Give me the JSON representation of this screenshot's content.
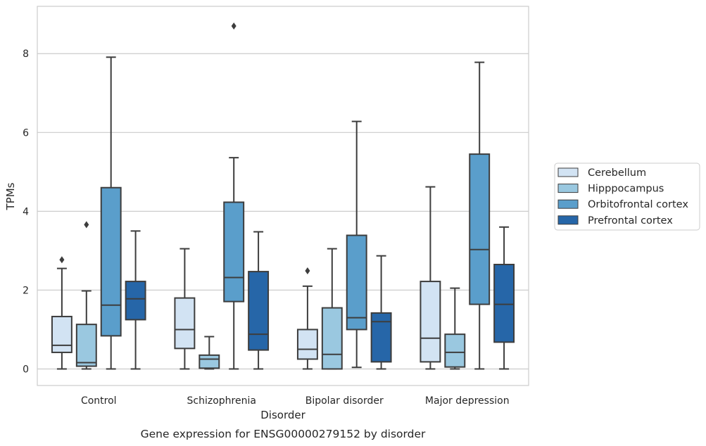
{
  "caption": "Gene expression for ENSG00000279152 by disorder",
  "chart_data": {
    "type": "box",
    "xlabel": "Disorder",
    "ylabel": "TPMs",
    "ylim": [
      -0.42,
      9.2
    ],
    "yticks": [
      0,
      2,
      4,
      6,
      8
    ],
    "categories": [
      "Control",
      "Schizophrenia",
      "Bipolar disorder",
      "Major depression"
    ],
    "grid": "horizontal",
    "legend_position": "right",
    "series": [
      {
        "name": "Cerebellum",
        "color": "#d2e3f3",
        "boxes": [
          {
            "whislo": 0.0,
            "q1": 0.42,
            "med": 0.6,
            "q3": 1.33,
            "whishi": 2.55,
            "fliers": [
              2.77
            ]
          },
          {
            "whislo": 0.0,
            "q1": 0.52,
            "med": 1.0,
            "q3": 1.8,
            "whishi": 3.05,
            "fliers": []
          },
          {
            "whislo": 0.0,
            "q1": 0.25,
            "med": 0.5,
            "q3": 1.0,
            "whishi": 2.1,
            "fliers": [
              2.49
            ]
          },
          {
            "whislo": 0.0,
            "q1": 0.18,
            "med": 0.78,
            "q3": 2.22,
            "whishi": 4.62,
            "fliers": []
          }
        ]
      },
      {
        "name": "Hipppocampus",
        "color": "#9ac8e0",
        "boxes": [
          {
            "whislo": 0.0,
            "q1": 0.07,
            "med": 0.16,
            "q3": 1.13,
            "whishi": 1.98,
            "fliers": [
              3.66
            ]
          },
          {
            "whislo": 0.0,
            "q1": 0.02,
            "med": 0.25,
            "q3": 0.35,
            "whishi": 0.82,
            "fliers": []
          },
          {
            "whislo": 0.0,
            "q1": 0.0,
            "med": 0.37,
            "q3": 1.55,
            "whishi": 3.05,
            "fliers": []
          },
          {
            "whislo": 0.0,
            "q1": 0.05,
            "med": 0.42,
            "q3": 0.88,
            "whishi": 2.05,
            "fliers": []
          }
        ]
      },
      {
        "name": "Orbitofrontal cortex",
        "color": "#5a9ecb",
        "boxes": [
          {
            "whislo": 0.0,
            "q1": 0.84,
            "med": 1.62,
            "q3": 4.6,
            "whishi": 7.91,
            "fliers": []
          },
          {
            "whislo": 0.0,
            "q1": 1.71,
            "med": 2.32,
            "q3": 4.23,
            "whishi": 5.36,
            "fliers": [
              8.7
            ]
          },
          {
            "whislo": 0.04,
            "q1": 1.0,
            "med": 1.3,
            "q3": 3.39,
            "whishi": 6.28,
            "fliers": []
          },
          {
            "whislo": 0.0,
            "q1": 1.64,
            "med": 3.03,
            "q3": 5.45,
            "whishi": 7.78,
            "fliers": []
          }
        ]
      },
      {
        "name": "Prefrontal cortex",
        "color": "#2666a8",
        "boxes": [
          {
            "whislo": 0.0,
            "q1": 1.25,
            "med": 1.78,
            "q3": 2.22,
            "whishi": 3.5,
            "fliers": []
          },
          {
            "whislo": 0.0,
            "q1": 0.48,
            "med": 0.88,
            "q3": 2.47,
            "whishi": 3.48,
            "fliers": []
          },
          {
            "whislo": 0.0,
            "q1": 0.18,
            "med": 1.2,
            "q3": 1.42,
            "whishi": 2.87,
            "fliers": []
          },
          {
            "whislo": 0.0,
            "q1": 0.68,
            "med": 1.64,
            "q3": 2.65,
            "whishi": 3.6,
            "fliers": []
          }
        ]
      }
    ]
  }
}
